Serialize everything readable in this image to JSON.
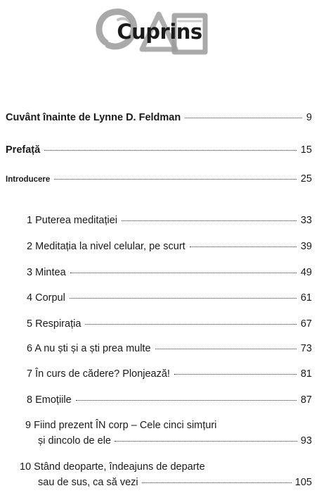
{
  "title": "Cuprins",
  "front_matter": [
    {
      "label": "Cuvânt înainte de Lynne D. Feldman",
      "page": "9"
    },
    {
      "label": "Prefață",
      "page": "15"
    },
    {
      "label": "Introducere",
      "page": "25"
    }
  ],
  "chapters": [
    {
      "number": "1",
      "title": "Puterea meditației",
      "page": "33"
    },
    {
      "number": "2",
      "title": "Meditația la nivel celular, pe scurt",
      "page": "39"
    },
    {
      "number": "3",
      "title": "Mintea",
      "page": "49"
    },
    {
      "number": "4",
      "title": "Corpul",
      "page": "61"
    },
    {
      "number": "5",
      "title": "Respirația",
      "page": "67"
    },
    {
      "number": "6",
      "title": "A nu ști și a ști prea multe",
      "page": "73"
    },
    {
      "number": "7",
      "title": "În curs de cădere? Plonjează!",
      "page": "81"
    },
    {
      "number": "8",
      "title": "Emoțiile",
      "page": "87"
    }
  ],
  "multiline_chapters": [
    {
      "number": "9",
      "line1": "Fiind prezent ÎN corp – Cele cinci simțuri",
      "line2": "și dincolo de ele",
      "page": "93"
    },
    {
      "number": "10",
      "line1": "Stând deoparte, îndeajuns de departe",
      "line2": "sau de sus, ca să vezi",
      "page": "105"
    }
  ],
  "colors": {
    "text": "#1a1a1a",
    "decoration": "#9a9a9a"
  },
  "icons": {
    "header_decoration": "brush-shapes-decoration"
  }
}
